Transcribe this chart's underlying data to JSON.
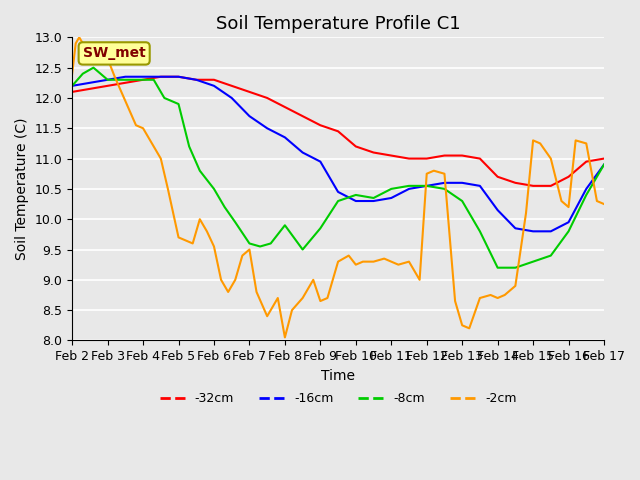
{
  "title": "Soil Temperature Profile C1",
  "xlabel": "Time",
  "ylabel": "Soil Temperature (C)",
  "ylim": [
    8.0,
    13.0
  ],
  "yticks": [
    8.0,
    8.5,
    9.0,
    9.5,
    10.0,
    10.5,
    11.0,
    11.5,
    12.0,
    12.5,
    13.0
  ],
  "background_color": "#e8e8e8",
  "grid_color": "#ffffff",
  "annotation_text": "SW_met",
  "annotation_color": "#800000",
  "annotation_bg": "#ffff99",
  "series": {
    "-32cm": {
      "color": "#ff0000",
      "x": [
        0,
        0.5,
        1.0,
        1.5,
        2.0,
        2.5,
        3.0,
        3.5,
        4.0,
        4.5,
        5.0,
        5.5,
        6.0,
        6.5,
        7.0,
        7.5,
        8.0,
        8.5,
        9.0,
        9.5,
        10.0,
        10.5,
        11.0,
        11.5,
        12.0,
        12.5,
        13.0,
        13.5,
        14.0,
        14.5,
        15.0
      ],
      "y": [
        12.1,
        12.15,
        12.2,
        12.25,
        12.3,
        12.35,
        12.35,
        12.3,
        12.3,
        12.2,
        12.1,
        12.0,
        11.85,
        11.7,
        11.55,
        11.45,
        11.2,
        11.1,
        11.05,
        11.0,
        11.0,
        11.05,
        11.05,
        11.0,
        10.7,
        10.6,
        10.55,
        10.55,
        10.7,
        10.95,
        11.0
      ]
    },
    "-16cm": {
      "color": "#0000ff",
      "x": [
        0,
        0.5,
        1.0,
        1.5,
        2.0,
        2.5,
        3.0,
        3.5,
        4.0,
        4.5,
        5.0,
        5.5,
        6.0,
        6.5,
        7.0,
        7.5,
        8.0,
        8.5,
        9.0,
        9.5,
        10.0,
        10.5,
        11.0,
        11.5,
        12.0,
        12.5,
        13.0,
        13.5,
        14.0,
        14.5,
        15.0
      ],
      "y": [
        12.2,
        12.25,
        12.3,
        12.35,
        12.35,
        12.35,
        12.35,
        12.3,
        12.2,
        12.0,
        11.7,
        11.5,
        11.35,
        11.1,
        10.95,
        10.45,
        10.3,
        10.3,
        10.35,
        10.5,
        10.55,
        10.6,
        10.6,
        10.55,
        10.15,
        9.85,
        9.8,
        9.8,
        9.95,
        10.5,
        10.9
      ]
    },
    "-8cm": {
      "color": "#00cc00",
      "x": [
        0,
        0.3,
        0.6,
        1.0,
        1.5,
        2.0,
        2.3,
        2.6,
        3.0,
        3.3,
        3.6,
        4.0,
        4.3,
        4.6,
        5.0,
        5.3,
        5.6,
        6.0,
        6.5,
        7.0,
        7.5,
        8.0,
        8.5,
        9.0,
        9.5,
        10.0,
        10.5,
        11.0,
        11.5,
        12.0,
        12.5,
        13.0,
        13.5,
        14.0,
        14.5,
        15.0
      ],
      "y": [
        12.2,
        12.4,
        12.5,
        12.3,
        12.3,
        12.3,
        12.3,
        12.0,
        11.9,
        11.2,
        10.8,
        10.5,
        10.2,
        9.95,
        9.6,
        9.55,
        9.6,
        9.9,
        9.5,
        9.85,
        10.3,
        10.4,
        10.35,
        10.5,
        10.55,
        10.55,
        10.5,
        10.3,
        9.8,
        9.2,
        9.2,
        9.3,
        9.4,
        9.8,
        10.4,
        10.9
      ]
    },
    "-2cm": {
      "color": "#ff9900",
      "x": [
        0,
        0.1,
        0.2,
        0.5,
        0.8,
        1.0,
        1.2,
        1.5,
        1.8,
        2.0,
        2.2,
        2.5,
        2.7,
        3.0,
        3.2,
        3.4,
        3.6,
        3.8,
        4.0,
        4.2,
        4.4,
        4.6,
        4.8,
        5.0,
        5.2,
        5.5,
        5.8,
        6.0,
        6.2,
        6.5,
        6.8,
        7.0,
        7.2,
        7.5,
        7.8,
        8.0,
        8.2,
        8.5,
        8.8,
        9.0,
        9.2,
        9.5,
        9.8,
        10.0,
        10.2,
        10.5,
        10.8,
        11.0,
        11.2,
        11.5,
        11.8,
        12.0,
        12.2,
        12.5,
        12.8,
        13.0,
        13.2,
        13.5,
        13.8,
        14.0,
        14.2,
        14.5,
        14.8,
        15.0
      ],
      "y": [
        12.4,
        12.9,
        13.0,
        12.7,
        12.6,
        12.65,
        12.35,
        11.95,
        11.55,
        11.5,
        11.3,
        11.0,
        10.5,
        9.7,
        9.65,
        9.6,
        10.0,
        9.8,
        9.55,
        9.0,
        8.8,
        9.0,
        9.4,
        9.5,
        8.8,
        8.4,
        8.7,
        8.05,
        8.5,
        8.7,
        9.0,
        8.65,
        8.7,
        9.3,
        9.4,
        9.25,
        9.3,
        9.3,
        9.35,
        9.3,
        9.25,
        9.3,
        9.0,
        10.75,
        10.8,
        10.75,
        8.65,
        8.25,
        8.2,
        8.7,
        8.75,
        8.7,
        8.75,
        8.9,
        10.1,
        11.3,
        11.25,
        11.0,
        10.3,
        10.2,
        11.3,
        11.25,
        10.3,
        10.25
      ]
    }
  },
  "xtick_labels": [
    "Feb 2",
    "Feb 3",
    "Feb 4",
    "Feb 5",
    "Feb 6",
    "Feb 7",
    "Feb 8",
    "Feb 9",
    "Feb 10",
    "Feb 11",
    "Feb 12",
    "Feb 13",
    "Feb 14",
    "Feb 15",
    "Feb 16",
    "Feb 17"
  ],
  "xtick_positions": [
    0,
    1,
    2,
    3,
    4,
    5,
    6,
    7,
    8,
    9,
    10,
    11,
    12,
    13,
    14,
    15
  ],
  "legend_entries": [
    "-32cm",
    "-16cm",
    "-8cm",
    "-2cm"
  ],
  "legend_colors": [
    "#ff0000",
    "#0000ff",
    "#00cc00",
    "#ff9900"
  ],
  "line_width": 1.5,
  "title_fontsize": 13,
  "label_fontsize": 10,
  "tick_fontsize": 9
}
